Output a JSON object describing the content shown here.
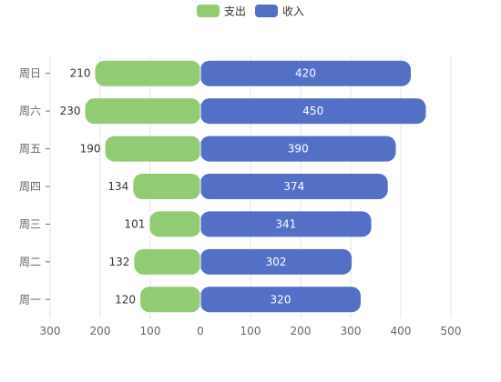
{
  "chart_data": {
    "type": "bar",
    "orientation": "horizontal",
    "stacked_diverging": true,
    "categories": [
      "周一",
      "周二",
      "周三",
      "周四",
      "周五",
      "周六",
      "周日"
    ],
    "series": [
      {
        "name": "支出",
        "values": [
          120,
          132,
          101,
          134,
          190,
          230,
          210
        ],
        "color": "#91cc75",
        "direction": "negative",
        "label_position": "left"
      },
      {
        "name": "收入",
        "values": [
          320,
          302,
          341,
          374,
          390,
          450,
          420
        ],
        "color": "#5470c6",
        "direction": "positive",
        "label_position": "inside"
      }
    ],
    "xlim": [
      -300,
      500
    ],
    "xticks": [
      -300,
      -200,
      -100,
      0,
      100,
      200,
      300,
      400,
      500
    ],
    "xtick_labels": [
      "300",
      "200",
      "100",
      "0",
      "100",
      "200",
      "300",
      "400",
      "500"
    ],
    "grid": true,
    "legend_position": "top-center",
    "title": "",
    "xlabel": "",
    "ylabel": ""
  }
}
